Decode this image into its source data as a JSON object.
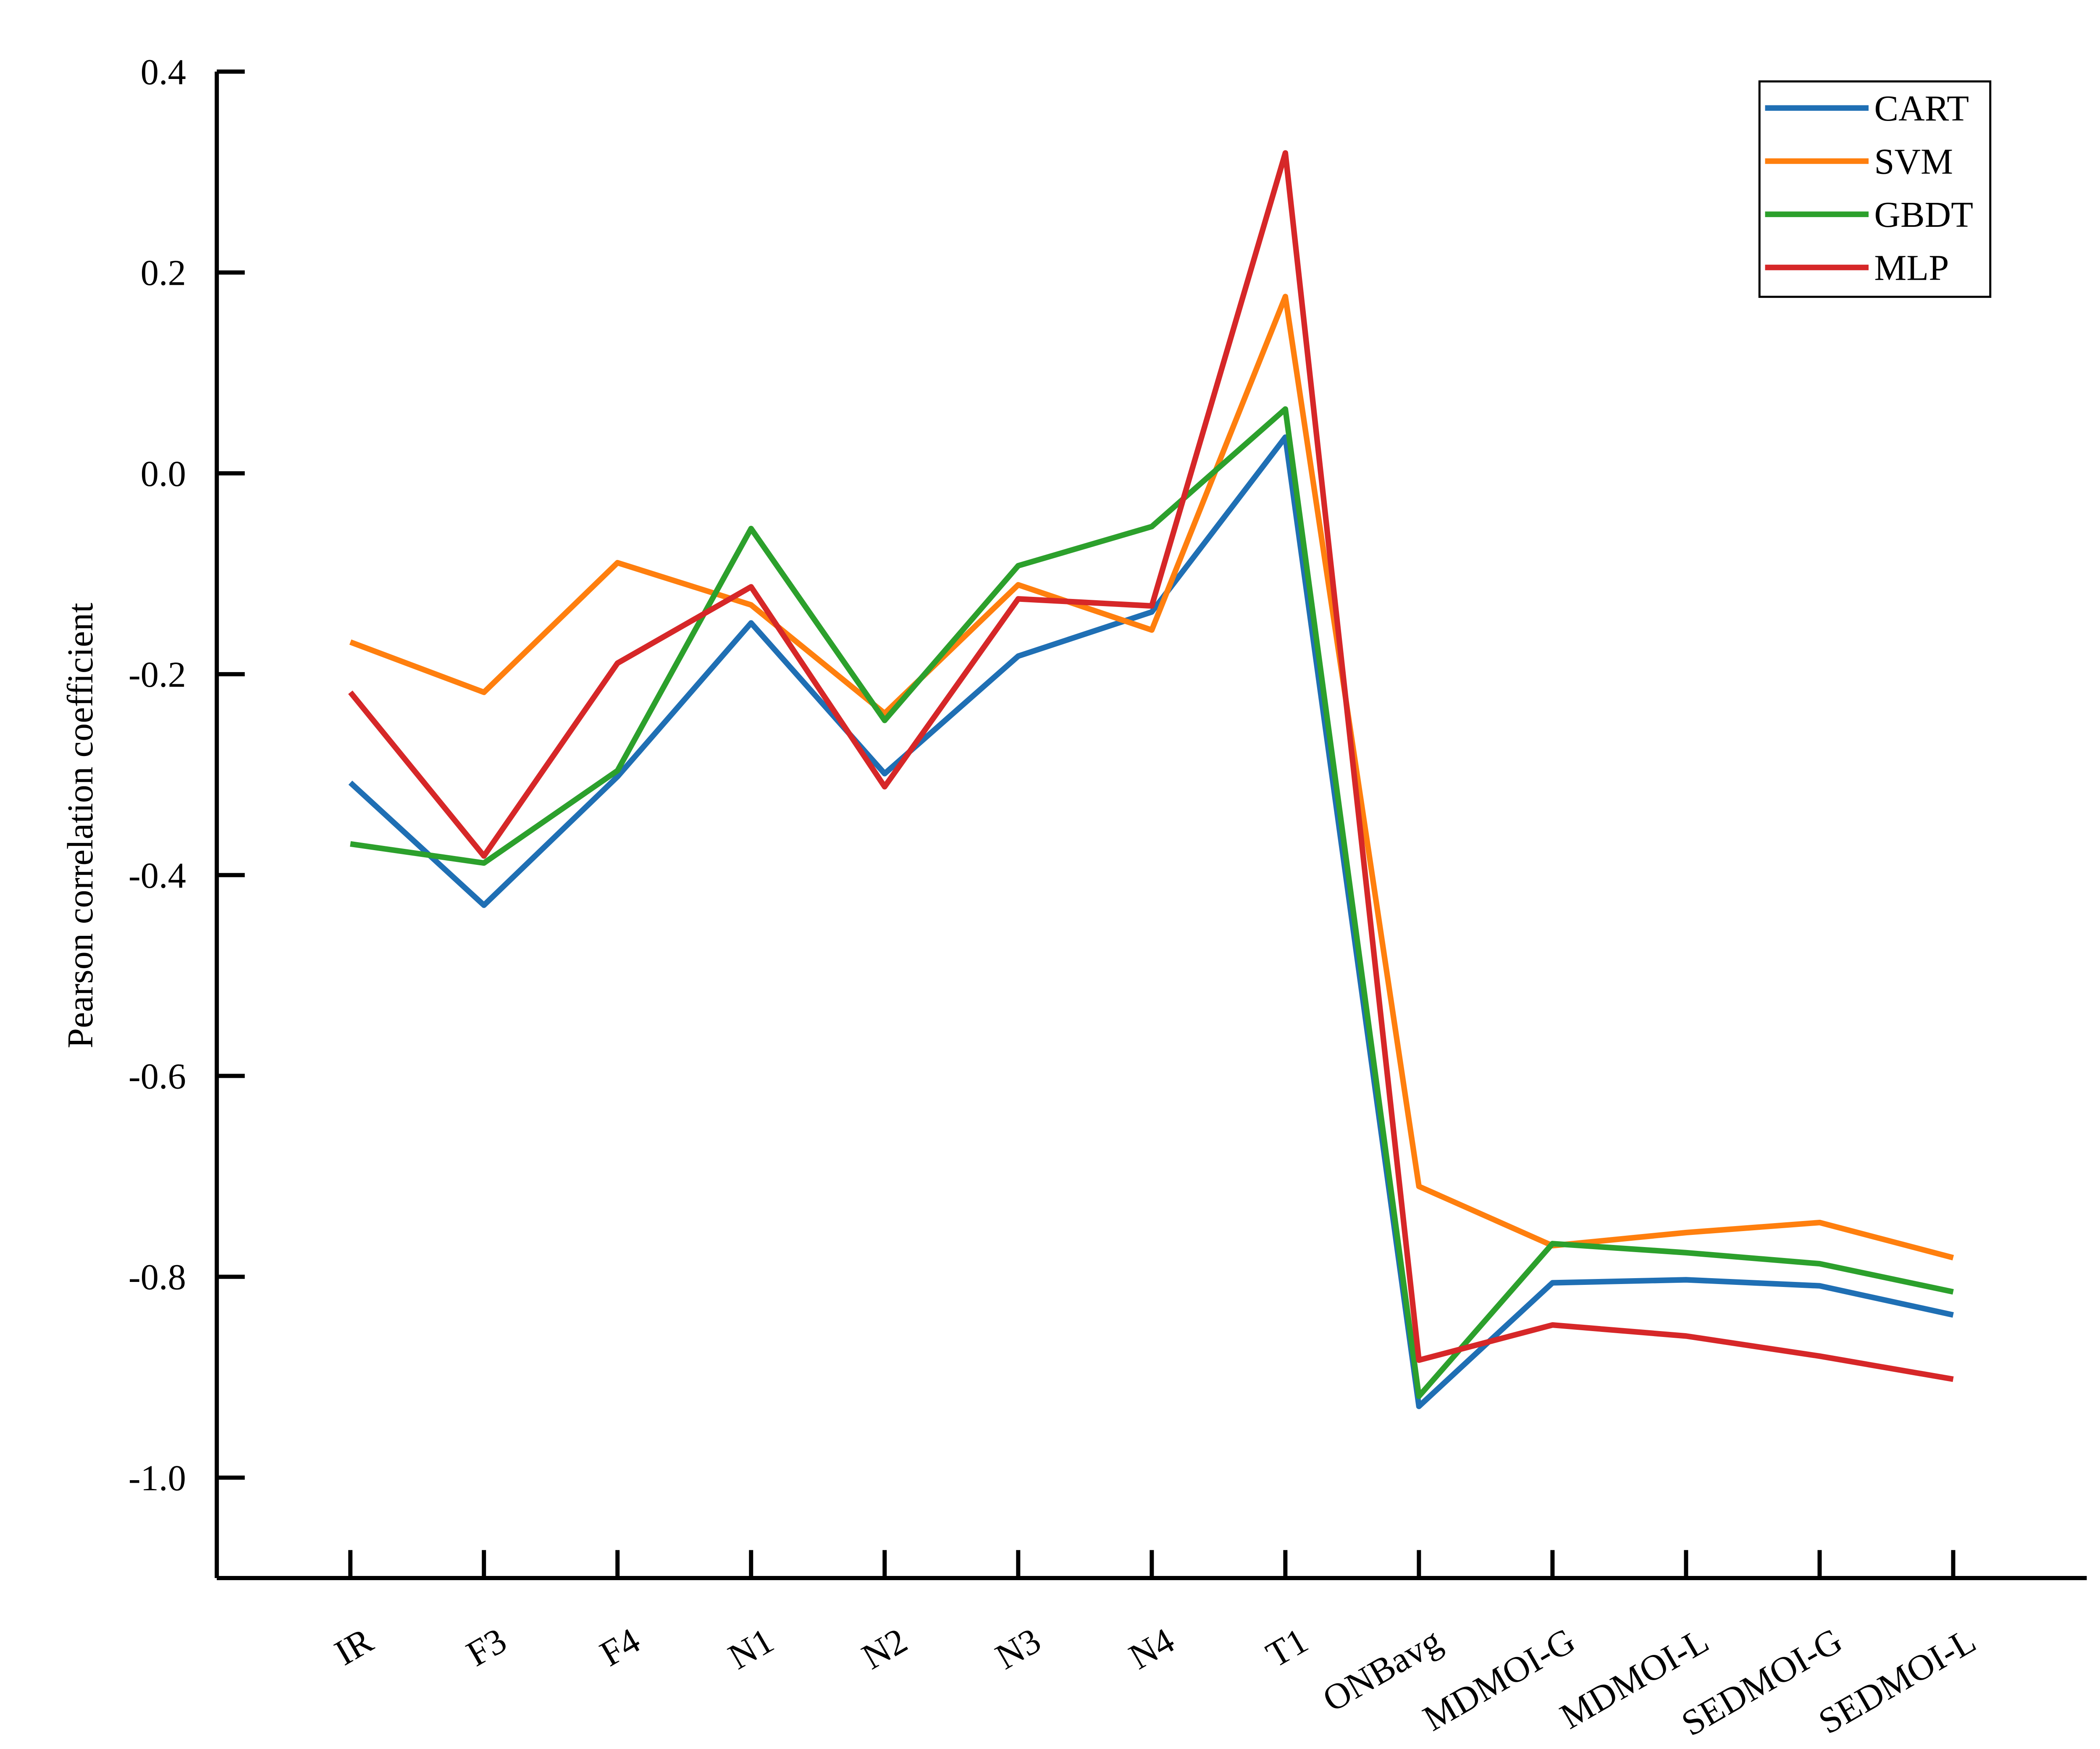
{
  "chart_data": {
    "type": "line",
    "y_label": "Pearson correlation coefficient",
    "categories": [
      "IR",
      "F3",
      "F4",
      "N1",
      "N2",
      "N3",
      "N4",
      "T1",
      "ONBavg",
      "MDMOI-G",
      "MDMOI-L",
      "SEDMOI-G",
      "SEDMOI-L"
    ],
    "series": [
      {
        "name": "CART",
        "color": "#1f6fb4",
        "values": [
          -0.308,
          -0.43,
          -0.302,
          -0.149,
          -0.299,
          -0.182,
          -0.138,
          0.036,
          -0.929,
          -0.806,
          -0.803,
          -0.809,
          -0.838
        ]
      },
      {
        "name": "SVM",
        "color": "#ff7f0e",
        "values": [
          -0.168,
          -0.218,
          -0.089,
          -0.131,
          -0.239,
          -0.111,
          -0.156,
          0.176,
          -0.71,
          -0.769,
          -0.756,
          -0.746,
          -0.781
        ]
      },
      {
        "name": "GBDT",
        "color": "#2ca02c",
        "values": [
          -0.369,
          -0.388,
          -0.296,
          -0.055,
          -0.246,
          -0.092,
          -0.053,
          0.064,
          -0.919,
          -0.767,
          -0.776,
          -0.787,
          -0.815
        ]
      },
      {
        "name": "MLP",
        "color": "#d62728",
        "values": [
          -0.218,
          -0.381,
          -0.189,
          -0.113,
          -0.312,
          -0.125,
          -0.132,
          0.319,
          -0.883,
          -0.848,
          -0.859,
          -0.879,
          -0.902
        ]
      }
    ],
    "ylim": [
      -1.1,
      0.4
    ],
    "yticks": [
      {
        "value": -1.0,
        "label": "-1.0"
      },
      -0.8,
      -0.6,
      -0.4,
      -0.2,
      {
        "value": 0,
        "label": "0.0"
      },
      0.2,
      0.4
    ],
    "legend": "top-right",
    "grid": false
  }
}
